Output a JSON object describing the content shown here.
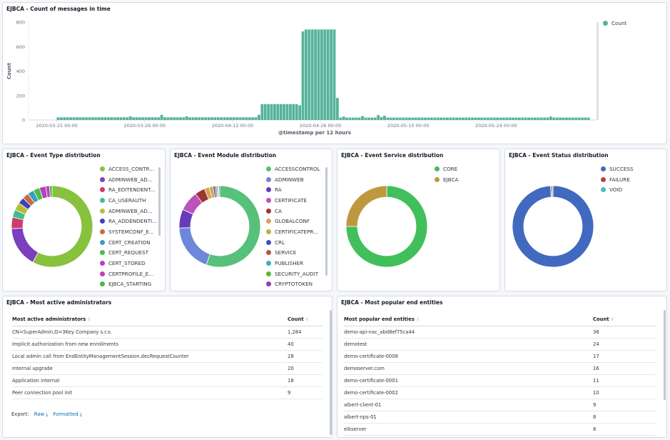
{
  "panels": {
    "timeline": "EJBCA - Count of messages in time",
    "event_type": "EJBCA - Event Type distribution",
    "event_module": "EJBCA - Event Module distribution",
    "event_service": "EJBCA - Event Service distribution",
    "event_status": "EJBCA - Event Status distribution",
    "admins": "EJBCA - Most active administrators",
    "entities": "EJBCA - Most popular end entities"
  },
  "chart_data": [
    {
      "type": "bar",
      "title": "EJBCA - Count of messages in time",
      "xlabel": "@timestamp per 12 hours",
      "ylabel": "Count",
      "ylim": [
        0,
        800
      ],
      "yticks": [
        0,
        200,
        400,
        600,
        800
      ],
      "xticks": [
        "2020-03-15 00:00",
        "2020-03-29 00:00",
        "2020-04-12 00:00",
        "2020-04-26 00:00",
        "2020-05-10 00:00",
        "2020-05-24 00:00"
      ],
      "xlim": [
        "2020-03-10 12:00",
        "2020-06-09 00:00"
      ],
      "legend": {
        "position": "top-right",
        "entries": [
          {
            "name": "Count",
            "color": "#54b399"
          }
        ]
      },
      "series": [
        {
          "name": "Count",
          "color": "#54b399",
          "x": [
            "2020-03-15 00:00",
            "2020-03-15 12:00",
            "2020-03-16 00:00",
            "2020-03-16 12:00",
            "2020-03-17 00:00",
            "2020-03-17 12:00",
            "2020-03-18 00:00",
            "2020-03-18 12:00",
            "2020-03-19 00:00",
            "2020-03-19 12:00",
            "2020-03-20 00:00",
            "2020-03-20 12:00",
            "2020-03-21 00:00",
            "2020-03-21 12:00",
            "2020-03-22 00:00",
            "2020-03-22 12:00",
            "2020-03-23 00:00",
            "2020-03-23 12:00",
            "2020-03-24 00:00",
            "2020-03-24 12:00",
            "2020-03-25 00:00",
            "2020-03-25 12:00",
            "2020-03-26 00:00",
            "2020-03-26 12:00",
            "2020-03-27 00:00",
            "2020-03-27 12:00",
            "2020-03-28 00:00",
            "2020-03-28 12:00",
            "2020-03-29 00:00",
            "2020-03-29 12:00",
            "2020-03-30 00:00",
            "2020-03-30 12:00",
            "2020-03-31 00:00",
            "2020-03-31 12:00",
            "2020-04-01 00:00",
            "2020-04-01 12:00",
            "2020-04-02 00:00",
            "2020-04-02 12:00",
            "2020-04-03 00:00",
            "2020-04-03 12:00",
            "2020-04-04 00:00",
            "2020-04-04 12:00",
            "2020-04-05 00:00",
            "2020-04-05 12:00",
            "2020-04-06 00:00",
            "2020-04-06 12:00",
            "2020-04-07 00:00",
            "2020-04-07 12:00",
            "2020-04-08 00:00",
            "2020-04-08 12:00",
            "2020-04-09 00:00",
            "2020-04-09 12:00",
            "2020-04-10 00:00",
            "2020-04-10 12:00",
            "2020-04-11 00:00",
            "2020-04-11 12:00",
            "2020-04-12 00:00",
            "2020-04-12 12:00",
            "2020-04-13 00:00",
            "2020-04-13 12:00",
            "2020-04-14 00:00",
            "2020-04-14 12:00",
            "2020-04-15 00:00",
            "2020-04-15 12:00",
            "2020-04-16 00:00",
            "2020-04-16 12:00",
            "2020-04-17 00:00",
            "2020-04-17 12:00",
            "2020-04-18 00:00",
            "2020-04-18 12:00",
            "2020-04-19 00:00",
            "2020-04-19 12:00",
            "2020-04-20 00:00",
            "2020-04-20 12:00",
            "2020-04-21 00:00",
            "2020-04-21 12:00",
            "2020-04-22 00:00",
            "2020-04-22 12:00",
            "2020-04-23 00:00",
            "2020-04-23 12:00",
            "2020-04-24 00:00",
            "2020-04-24 12:00",
            "2020-04-25 00:00",
            "2020-04-25 12:00",
            "2020-04-26 00:00",
            "2020-04-26 12:00",
            "2020-04-27 00:00",
            "2020-04-27 12:00",
            "2020-04-28 00:00",
            "2020-04-28 12:00",
            "2020-04-29 00:00",
            "2020-04-29 12:00",
            "2020-04-30 00:00",
            "2020-04-30 12:00",
            "2020-05-01 00:00",
            "2020-05-01 12:00",
            "2020-05-02 00:00",
            "2020-05-02 12:00",
            "2020-05-03 00:00",
            "2020-05-03 12:00",
            "2020-05-04 00:00",
            "2020-05-04 12:00",
            "2020-05-05 00:00",
            "2020-05-05 12:00",
            "2020-05-06 00:00",
            "2020-05-06 12:00",
            "2020-05-07 00:00",
            "2020-05-07 12:00",
            "2020-05-08 00:00",
            "2020-05-08 12:00",
            "2020-05-09 00:00",
            "2020-05-09 12:00",
            "2020-05-10 00:00",
            "2020-05-10 12:00",
            "2020-05-11 00:00",
            "2020-05-11 12:00",
            "2020-05-12 00:00",
            "2020-05-12 12:00",
            "2020-05-13 00:00",
            "2020-05-13 12:00",
            "2020-05-14 00:00",
            "2020-05-14 12:00",
            "2020-05-15 00:00",
            "2020-05-15 12:00",
            "2020-05-16 00:00",
            "2020-05-16 12:00",
            "2020-05-17 00:00",
            "2020-05-17 12:00",
            "2020-05-18 00:00",
            "2020-05-18 12:00",
            "2020-05-19 00:00",
            "2020-05-19 12:00",
            "2020-05-20 00:00",
            "2020-05-20 12:00",
            "2020-05-21 00:00",
            "2020-05-21 12:00",
            "2020-05-22 00:00",
            "2020-05-22 12:00",
            "2020-05-23 00:00",
            "2020-05-23 12:00",
            "2020-05-24 00:00",
            "2020-05-24 12:00",
            "2020-05-25 00:00",
            "2020-05-25 12:00",
            "2020-05-26 00:00",
            "2020-05-26 12:00",
            "2020-05-27 00:00",
            "2020-05-27 12:00",
            "2020-05-28 00:00",
            "2020-05-28 12:00",
            "2020-05-29 00:00",
            "2020-05-29 12:00",
            "2020-05-30 00:00",
            "2020-05-30 12:00",
            "2020-05-31 00:00",
            "2020-05-31 12:00",
            "2020-06-01 00:00",
            "2020-06-01 12:00",
            "2020-06-02 00:00",
            "2020-06-02 12:00",
            "2020-06-03 00:00",
            "2020-06-03 12:00",
            "2020-06-04 00:00",
            "2020-06-04 12:00",
            "2020-06-05 00:00",
            "2020-06-05 12:00",
            "2020-06-06 00:00",
            "2020-06-06 12:00",
            "2020-06-07 00:00",
            "2020-06-07 12:00"
          ],
          "values": [
            22,
            22,
            22,
            22,
            22,
            22,
            22,
            22,
            22,
            22,
            22,
            22,
            22,
            22,
            22,
            22,
            22,
            22,
            22,
            22,
            22,
            22,
            22,
            30,
            22,
            22,
            22,
            22,
            22,
            22,
            22,
            22,
            22,
            42,
            22,
            22,
            22,
            22,
            22,
            22,
            22,
            30,
            22,
            22,
            22,
            22,
            22,
            22,
            22,
            22,
            22,
            22,
            22,
            22,
            22,
            22,
            22,
            22,
            22,
            22,
            22,
            22,
            22,
            22,
            42,
            130,
            130,
            130,
            130,
            130,
            130,
            130,
            130,
            130,
            130,
            130,
            130,
            120,
            725,
            740,
            740,
            740,
            740,
            740,
            740,
            740,
            740,
            740,
            740,
            180,
            20,
            28,
            20,
            20,
            20,
            20,
            20,
            32,
            20,
            20,
            20,
            20,
            40,
            24,
            35,
            20,
            20,
            20,
            20,
            20,
            20,
            20,
            20,
            20,
            20,
            20,
            20,
            20,
            20,
            20,
            20,
            20,
            20,
            20,
            20,
            20,
            20,
            20,
            20,
            20,
            20,
            20,
            20,
            20,
            20,
            20,
            20,
            20,
            20,
            20,
            20,
            20,
            20,
            20,
            20,
            20,
            20,
            20,
            20,
            20,
            20,
            20,
            20,
            20,
            20,
            20,
            20,
            28,
            20,
            20,
            20,
            20,
            20,
            20,
            20,
            20,
            20,
            20,
            20,
            20
          ]
        }
      ]
    },
    {
      "type": "pie",
      "title": "EJBCA - Event Type distribution",
      "donut": true,
      "labels": [
        "ACCESS_CONTR...",
        "ADMINWEB_AD...",
        "RA_EDITENDENT...",
        "CA_USERAUTH",
        "ADMINWEB_AD...",
        "RA_ADDENDENTI...",
        "SYSTEMCONF_E...",
        "CERT_CREATION",
        "CERT_REQUEST",
        "CERT_STORED",
        "CERTPROFILE_E...",
        "EJBCA_STARTING"
      ],
      "values": [
        57,
        16,
        4.5,
        3,
        3,
        2.5,
        2.5,
        2.5,
        2.5,
        2.5,
        1.5,
        1
      ],
      "colors": [
        "#87c13d",
        "#7b3fc0",
        "#cc3d6e",
        "#3ebf8c",
        "#b9bd36",
        "#4040c0",
        "#c96a3e",
        "#3e9cc4",
        "#45bf45",
        "#b340c4",
        "#c43eb0",
        "#3ebf3e"
      ]
    },
    {
      "type": "pie",
      "title": "EJBCA - Event Module distribution",
      "donut": true,
      "labels": [
        "ACCESSCONTROL",
        "ADMINWEB",
        "RA",
        "CERTIFICATE",
        "CA",
        "GLOBALCONF",
        "CERTIFICATEPR...",
        "CRL",
        "SERVICE",
        "PUBLISHER",
        "SECURITY_AUDIT",
        "CRYPTOTOKEN"
      ],
      "values": [
        55.5,
        19,
        7.5,
        8,
        4,
        2,
        1.5,
        0.8,
        0.6,
        0.5,
        0.4,
        0.4
      ],
      "colors": [
        "#57c17b",
        "#6f87d8",
        "#663db8",
        "#bc52bc",
        "#9e3533",
        "#daa05d",
        "#bfaf40",
        "#4050bf",
        "#bf5040",
        "#38b0c8",
        "#58b834",
        "#8e3ec0"
      ]
    },
    {
      "type": "pie",
      "title": "EJBCA - Event Service distribution",
      "donut": true,
      "labels": [
        "CORE",
        "EJBCA"
      ],
      "values": [
        75,
        25
      ],
      "colors": [
        "#40bf5b",
        "#bf983e"
      ]
    },
    {
      "type": "pie",
      "title": "EJBCA - Event Status distribution",
      "donut": true,
      "labels": [
        "SUCCESS",
        "FAILURE",
        "VOID"
      ],
      "values": [
        99,
        0.5,
        0.5
      ],
      "colors": [
        "#4169bf",
        "#bf4040",
        "#40bfbf"
      ]
    }
  ],
  "admins": {
    "headers": [
      "Most active administrators",
      "Count"
    ],
    "rows": [
      [
        "CN=SuperAdmin,O=3Key Company s.r.o.",
        "1,284"
      ],
      [
        "Implicit authorization from new enrollments",
        "40"
      ],
      [
        "Local admin call from EndEntityManagementSession.decRequestCounter",
        "28"
      ],
      [
        "Internal upgrade",
        "20"
      ],
      [
        "Application internal",
        "18"
      ],
      [
        "Peer connection pool init",
        "9"
      ]
    ],
    "export_label": "Export:",
    "raw_label": "Raw",
    "formatted_label": "Formatted"
  },
  "entities": {
    "headers": [
      "Most popular end entities",
      "Count"
    ],
    "rows": [
      [
        "demo-api-nac_abd8ef75ca44",
        "36"
      ],
      [
        "demotest",
        "24"
      ],
      [
        "demo-certificate-0008",
        "17"
      ],
      [
        "demoserver.com",
        "16"
      ],
      [
        "demo-certificate-0001",
        "11"
      ],
      [
        "demo-certificate-0002",
        "10"
      ],
      [
        "albert-client-01",
        "9"
      ],
      [
        "albert-nps-01",
        "8"
      ],
      [
        "elkserver",
        "8"
      ]
    ]
  }
}
